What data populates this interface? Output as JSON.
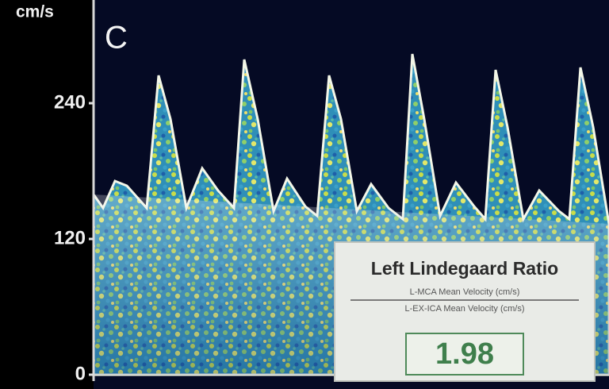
{
  "panel_label": "C",
  "axis": {
    "unit": "cm/s",
    "ticks": [
      0,
      120,
      240
    ]
  },
  "ratio_box": {
    "title": "Left Lindegaard Ratio",
    "numerator": "L-MCA Mean Velocity (cm/s)",
    "denominator": "L-EX-ICA Mean Velocity (cm/s)",
    "value": "1.98"
  }
}
